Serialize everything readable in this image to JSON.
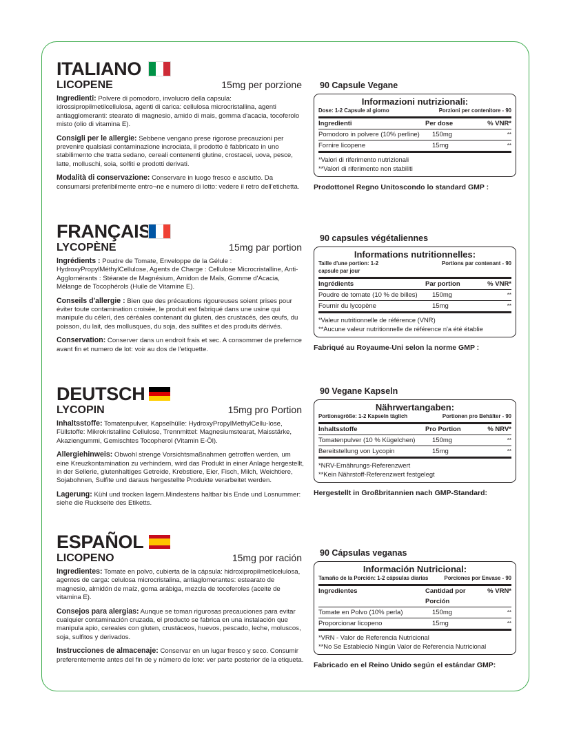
{
  "accent_color": "#3aaa4a",
  "sections": [
    {
      "lang": "ITALIANO",
      "flag": "italy-flag-icon",
      "flag_colors": [
        "#009246",
        "#ffffff",
        "#ce2b37"
      ],
      "flag_dir": "v",
      "product": "LICOPENE",
      "dose": "15mg per porzione",
      "paras": [
        {
          "label": "Ingredienti:",
          "text": " Polvere di pomodoro, involucro della capsula: idrossipropilmetilcellulosa, agenti di carica: cellulosa microcristallina, agenti antiagglomeranti: stearato di magnesio, amido di mais, gomma d'acacia, tocoferolo misto (olio di vitamina E)."
        },
        {
          "label": "Consigli per le allergie:",
          "text": " Sebbene vengano prese rigorose precauzioni per prevenire qualsiasi contaminazione incrociata, il prodotto è fabbricato in uno stabilimento che tratta sedano, cereali contenenti glutine, crostacei, uova, pesce, latte, molluschi, soia, solfiti e prodotti derivati."
        },
        {
          "label": "Modalità di conservazione:",
          "text": " Conservare in luogo fresco e asciutto. Da consumarsi preferibilmente entro¬ne e numero di lotto: vedere il retro dell'etichetta."
        }
      ],
      "capsules": "90 Capsule Vegane",
      "box": {
        "title": "Informazioni nutrizionali:",
        "meta_left": "Dose: 1-2 Capsule al giorno",
        "meta_right": "Porzioni per contenitore - 90",
        "header": [
          "Ingredienti",
          "Per dose",
          "% VNR*"
        ],
        "rows": [
          [
            "Pomodoro in polvere (10% perline)",
            "150mg",
            "**"
          ],
          [
            "Fornire licopene",
            "15mg",
            "**"
          ]
        ],
        "notes": [
          "*Valori di riferimento nutrizionali",
          "**Valori di riferimento non stabiliti"
        ]
      },
      "made": "Prodottonel Regno Unitoscondo lo standard GMP :"
    },
    {
      "lang": "FRANÇAIS",
      "flag": "france-flag-icon",
      "flag_colors": [
        "#0055a4",
        "#ffffff",
        "#ef4135"
      ],
      "flag_dir": "v",
      "product": "LYCOPÈNE",
      "dose": "15mg par portion",
      "paras": [
        {
          "label": "Ingrédients :",
          "text": " Poudre de Tomate, Enveloppe de la Gélule : HydroxyPropylMéthylCellulose, Agents de Charge : Cellulose Microcristalline, Anti-Agglomérants : Stéarate de Magnésium, Amidon de Maïs, Gomme d'Acacia, Mélange de Tocophérols (Huile de Vitamine E)."
        },
        {
          "label": "Conseils d'allergie :",
          "text": " Bien que des précautions rigoureuses soient prises pour éviter toute contamination croisée, le produit est fabriqué dans une usine qui manipule du céleri, des céréales contenant du gluten, des crustacés, des œufs, du poisson, du lait, des mollusques, du soja, des sulfites et des produits dérivés."
        },
        {
          "label": "Conservation:",
          "text": " Conserver dans un endroit frais et sec. A consommer de prefernce avant fin et numero de lot: voir au dos de l'etiquette."
        }
      ],
      "capsules": "90 capsules végétaliennes",
      "box": {
        "title": "Informations nutritionnelles:",
        "meta_left": "Taille d'une portion: 1-2 capsule par jour",
        "meta_right": "Portions par contenant - 90",
        "header": [
          "Ingrédients",
          "Par portion",
          "% VNR*"
        ],
        "rows": [
          [
            "Poudre de tomate (10 % de billes)",
            "150mg",
            "**"
          ],
          [
            "Fournir du lycopène",
            "15mg",
            "**"
          ]
        ],
        "notes": [
          "*Valeur nutritionnelle de référence (VNR)",
          "**Aucune valeur nutritionnelle de référence n'a été établie"
        ]
      },
      "made": "Fabriqué au Royaume-Uni selon la norme GMP :"
    },
    {
      "lang": "DEUTSCH",
      "flag": "germany-flag-icon",
      "flag_colors": [
        "#000000",
        "#dd0000",
        "#ffce00"
      ],
      "flag_dir": "h",
      "product": "LYCOPIN",
      "dose": "15mg pro Portion",
      "paras": [
        {
          "label": "Inhaltsstoffe:",
          "text": " Tomatenpulver, Kapselhülle: HydroxyPropylMethylCellu-lose, Füllstoffe: Mikrokristalline Cellulose, Trennmittel: Magnesiumstearat, Maisstärke, Akaziengummi, Gemischtes Tocopherol (Vitamin E-Öl)."
        },
        {
          "label": "Allergiehinweis:",
          "text": " Obwohl strenge Vorsichtsmaßnahmen getroffen werden, um eine Kreuzkontamination zu verhindern, wird das Produkt in einer Anlage hergestellt, in der Sellerie, glutenhaltiges Getreide, Krebstiere, Eier, Fisch, Milch, Weichtiere, Sojabohnen, Sulfite und daraus hergestellte Produkte verarbeitet werden."
        },
        {
          "label": "Lagerung:",
          "text": "  Kühl und trocken lagern.Mindestens haltbar bis Ende und Losnummer: siehe die Ruckseite des Etiketts."
        }
      ],
      "capsules": "90 Vegane Kapseln",
      "box": {
        "title": "Nährwertangaben:",
        "meta_left": "Portionsgröße: 1-2 Kapseln täglich",
        "meta_right": "Portionen pro Behälter - 90",
        "header": [
          "Inhaltsstoffe",
          "Pro Portion",
          "% NRV*"
        ],
        "rows": [
          [
            "Tomatenpulver (10 % Kügelchen)",
            "150mg",
            "**"
          ],
          [
            "Bereitstellung von Lycopin",
            "15mg",
            "**"
          ]
        ],
        "notes": [
          "*NRV-Ernährungs-Referenzwert",
          "**Kein Nährstoff-Referenzwert festgelegt"
        ]
      },
      "made": "Hergestellt in Großbritannien nach GMP-Standard:"
    },
    {
      "lang": "ESPAÑOL",
      "flag": "spain-flag-icon",
      "flag_colors": [
        "#c60b1e",
        "#ffc400",
        "#c60b1e"
      ],
      "flag_dir": "h",
      "product": "LICOPENO",
      "dose": "15mg por ración",
      "paras": [
        {
          "label": "Ingredientes:",
          "text": " Tomate en polvo, cubierta de la cápsula: hidroxipropilmetilcelulosa, agentes de carga: celulosa microcristalina, antiaglomerantes: estearato de magnesio, almidón de maíz, goma arábiga, mezcla de tocoferoles (aceite de vitamina E)."
        },
        {
          "label": "Consejos para alergias:",
          "text": " Aunque se toman rigurosas precauciones para evitar cualquier contaminación cruzada, el producto se fabrica en una instalación que manipula apio, cereales con gluten, crustáceos, huevos, pescado, leche, moluscos, soja, sulfitos y derivados."
        },
        {
          "label": "Instrucciones de almacenaje:",
          "text": " Conservar en un lugar fresco y seco. Consumir preferentemente antes del fin de y número de lote: ver parte posterior de la etiqueta."
        }
      ],
      "capsules": "90 Cápsulas veganas",
      "box": {
        "title": "Información Nutricional:",
        "meta_left": "Tamaño de la Porción: 1-2 cápsulas diarias",
        "meta_right": "Porciones por Envase - 90",
        "header": [
          "Ingredientes",
          "Cantidad  por Porción",
          "% VRN*"
        ],
        "rows": [
          [
            "Tomate en Polvo (10% perla)",
            "150mg",
            "**"
          ],
          [
            "Proporcionar licopeno",
            "15mg",
            "**"
          ]
        ],
        "notes": [
          "*VRN - Valor de Referencia Nutricional",
          "**No Se Estableció Ningún Valor de Referencia Nutricional"
        ]
      },
      "made": "Fabricado en el Reino Unido según el estándar GMP:"
    }
  ]
}
